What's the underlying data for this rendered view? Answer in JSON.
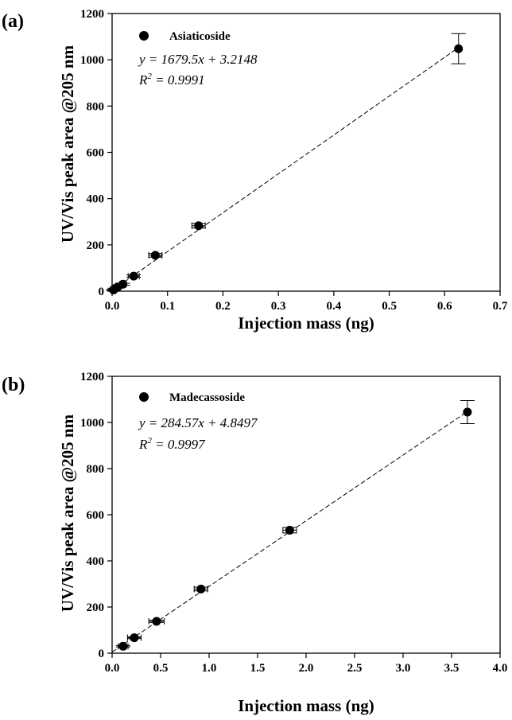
{
  "chart_data": [
    {
      "type": "scatter",
      "panel_label": "(a)",
      "xlabel": "Injection mass (ng)",
      "ylabel": "UV/Vis peak area @205 nm",
      "xlim": [
        0,
        0.7
      ],
      "ylim": [
        0,
        1200
      ],
      "xticks": [
        "0.0",
        "0.1",
        "0.2",
        "0.3",
        "0.4",
        "0.5",
        "0.6",
        "0.7"
      ],
      "yticks": [
        "0",
        "200",
        "400",
        "600",
        "800",
        "1000",
        "1200"
      ],
      "grid": false,
      "legend_position": "top-left",
      "series": [
        {
          "name": "Asiaticoside",
          "x": [
            0.0024,
            0.005,
            0.0098,
            0.0195,
            0.039,
            0.078,
            0.156,
            0.625
          ],
          "y": [
            5,
            11,
            18,
            30,
            65,
            155,
            283,
            1048
          ],
          "yerr": [
            2,
            2,
            3,
            4,
            5,
            8,
            10,
            65
          ],
          "xerr": [
            0.001,
            0.002,
            0.003,
            0.006,
            0.01,
            0.012,
            0.012,
            0.0
          ]
        }
      ],
      "fit": {
        "slope": 1679.5,
        "intercept": 3.2148
      },
      "equation": "y = 1679.5x + 3.2148",
      "r2_prefix": "R",
      "r2_exp": "2",
      "r2_value": " = 0.9991"
    },
    {
      "type": "scatter",
      "panel_label": "(b)",
      "xlabel": "Injection mass (ng)",
      "ylabel": "UV/Vis peak area @205 nm",
      "xlim": [
        0,
        4.0
      ],
      "ylim": [
        0,
        1200
      ],
      "xticks": [
        "0.0",
        "0.5",
        "1.0",
        "1.5",
        "2.0",
        "2.5",
        "3.0",
        "3.5",
        "4.0"
      ],
      "yticks": [
        "0",
        "200",
        "400",
        "600",
        "800",
        "1000",
        "1200"
      ],
      "grid": false,
      "legend_position": "top-left",
      "series": [
        {
          "name": "Madecassoside",
          "x": [
            0.114,
            0.229,
            0.458,
            0.916,
            1.831,
            3.663
          ],
          "y": [
            30,
            67,
            138,
            278,
            533,
            1045
          ],
          "yerr": [
            3,
            4,
            5,
            8,
            12,
            50
          ],
          "xerr": [
            0.05,
            0.07,
            0.08,
            0.07,
            0.07,
            0.0
          ]
        }
      ],
      "fit": {
        "slope": 284.57,
        "intercept": 4.8497
      },
      "equation": "y = 284.57x + 4.8497",
      "r2_prefix": "R",
      "r2_exp": "2",
      "r2_value": " = 0.9997"
    }
  ]
}
